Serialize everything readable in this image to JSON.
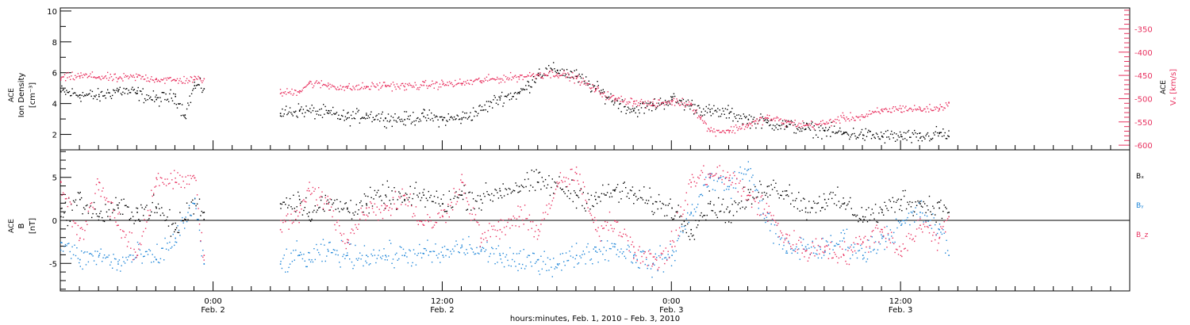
{
  "colors": {
    "black": "#000000",
    "pink": "#e8315f",
    "blue": "#1f86d8",
    "axis": "#000000"
  },
  "xaxis": {
    "title": "hours:minutes, Feb.  1, 2010 – Feb.  3, 2010",
    "ticks": [
      {
        "x": 24,
        "time": "0:00",
        "date": "Feb. 2"
      },
      {
        "x": 36,
        "time": "12:00",
        "date": "Feb. 2"
      },
      {
        "x": 48,
        "time": "0:00",
        "date": "Feb. 3"
      },
      {
        "x": 60,
        "time": "12:00",
        "date": "Feb. 3"
      }
    ]
  },
  "chart_data": [
    {
      "type": "scatter",
      "panel": "density-velocity",
      "ylabel": [
        "ACE",
        "Ion Density",
        "[cm⁻³]"
      ],
      "ylabel_right": [
        "ACE",
        "Vₓ [km/s]"
      ],
      "ylim": [
        1,
        10.2
      ],
      "yticks": [
        2,
        4,
        6,
        8,
        10
      ],
      "ylim_right": [
        -610,
        -305
      ],
      "yticks_right": [
        -350,
        -400,
        -450,
        -500,
        -550,
        -600
      ],
      "xlim": [
        16,
        72
      ],
      "x_unit": "hours since Feb. 1, 2010 0:00",
      "series": [
        {
          "key": "density",
          "color": "#000000",
          "points": [
            [
              16.0,
              4.8
            ],
            [
              17.0,
              4.6
            ],
            [
              18.0,
              4.5
            ],
            [
              19.0,
              4.9
            ],
            [
              20.0,
              4.7
            ],
            [
              21.0,
              4.3
            ],
            [
              22.0,
              4.5
            ],
            [
              22.5,
              3.3
            ],
            [
              23.0,
              5.2
            ],
            [
              23.5,
              5.0
            ],
            [
              27.5,
              3.4
            ],
            [
              28.5,
              3.6
            ],
            [
              30.0,
              3.4
            ],
            [
              31.0,
              3.1
            ],
            [
              32.0,
              3.3
            ],
            [
              33.0,
              3.1
            ],
            [
              34.0,
              3.0
            ],
            [
              35.0,
              3.2
            ],
            [
              36.0,
              3.0
            ],
            [
              37.0,
              3.1
            ],
            [
              38.0,
              3.6
            ],
            [
              39.0,
              4.4
            ],
            [
              40.0,
              4.7
            ],
            [
              40.5,
              5.2
            ],
            [
              41.0,
              6.0
            ],
            [
              42.0,
              6.2
            ],
            [
              43.0,
              5.8
            ],
            [
              44.0,
              5.0
            ],
            [
              45.0,
              4.2
            ],
            [
              46.0,
              3.6
            ],
            [
              47.0,
              3.9
            ],
            [
              48.0,
              4.3
            ],
            [
              49.0,
              3.9
            ],
            [
              50.0,
              3.5
            ],
            [
              51.0,
              3.4
            ],
            [
              52.0,
              3.0
            ],
            [
              53.0,
              2.8
            ],
            [
              54.0,
              2.6
            ],
            [
              55.0,
              2.4
            ],
            [
              56.0,
              2.3
            ],
            [
              57.0,
              2.1
            ],
            [
              58.0,
              2.0
            ],
            [
              59.0,
              1.9
            ],
            [
              60.0,
              1.9
            ],
            [
              61.0,
              1.8
            ],
            [
              62.0,
              2.1
            ],
            [
              62.5,
              1.9
            ]
          ]
        },
        {
          "key": "vx",
          "color": "#e8315f",
          "points": [
            [
              16.0,
              -455
            ],
            [
              17.0,
              -450
            ],
            [
              18.0,
              -452
            ],
            [
              19.0,
              -456
            ],
            [
              20.0,
              -452
            ],
            [
              21.0,
              -457
            ],
            [
              22.0,
              -460
            ],
            [
              23.0,
              -458
            ],
            [
              23.5,
              -456
            ],
            [
              27.5,
              -488
            ],
            [
              28.5,
              -482
            ],
            [
              29.0,
              -466
            ],
            [
              30.0,
              -470
            ],
            [
              31.0,
              -476
            ],
            [
              32.0,
              -474
            ],
            [
              33.0,
              -470
            ],
            [
              34.0,
              -473
            ],
            [
              35.0,
              -470
            ],
            [
              36.0,
              -468
            ],
            [
              37.0,
              -466
            ],
            [
              38.0,
              -460
            ],
            [
              39.0,
              -456
            ],
            [
              40.0,
              -452
            ],
            [
              41.0,
              -447
            ],
            [
              42.0,
              -445
            ],
            [
              43.0,
              -455
            ],
            [
              44.0,
              -480
            ],
            [
              45.0,
              -500
            ],
            [
              46.0,
              -505
            ],
            [
              47.0,
              -512
            ],
            [
              48.0,
              -505
            ],
            [
              49.0,
              -510
            ],
            [
              49.5,
              -540
            ],
            [
              50.0,
              -568
            ],
            [
              51.0,
              -568
            ],
            [
              52.0,
              -555
            ],
            [
              53.0,
              -540
            ],
            [
              54.0,
              -550
            ],
            [
              55.0,
              -556
            ],
            [
              56.0,
              -553
            ],
            [
              57.0,
              -540
            ],
            [
              58.0,
              -538
            ],
            [
              59.0,
              -525
            ],
            [
              60.0,
              -520
            ],
            [
              61.0,
              -522
            ],
            [
              62.0,
              -520
            ],
            [
              62.5,
              -508
            ]
          ]
        }
      ]
    },
    {
      "type": "scatter",
      "panel": "magnetic-field",
      "ylabel": [
        "ACE",
        "B",
        "[nT]"
      ],
      "ylim": [
        -8.2,
        8.2
      ],
      "yticks": [
        5,
        0,
        -5
      ],
      "zero_line": true,
      "xlim": [
        16,
        72
      ],
      "x_unit": "hours since Feb. 1, 2010 0:00",
      "legend": [
        {
          "label": "Bₓ",
          "color": "#000000"
        },
        {
          "label": "Bᵧ",
          "color": "#1f86d8"
        },
        {
          "label": "B_z",
          "color": "#e8315f"
        }
      ],
      "series": [
        {
          "key": "bx",
          "color": "#000000",
          "points": [
            [
              16.0,
              0.5
            ],
            [
              17.0,
              2.5
            ],
            [
              18.0,
              0.5
            ],
            [
              19.0,
              1.5
            ],
            [
              20.0,
              1.0
            ],
            [
              21.0,
              1.5
            ],
            [
              22.0,
              -1.0
            ],
            [
              23.0,
              2.0
            ],
            [
              23.5,
              1.0
            ],
            [
              27.5,
              2.0
            ],
            [
              28.5,
              2.5
            ],
            [
              29.0,
              1.0
            ],
            [
              30.0,
              2.0
            ],
            [
              31.0,
              1.5
            ],
            [
              32.0,
              2.0
            ],
            [
              33.0,
              3.0
            ],
            [
              34.0,
              2.5
            ],
            [
              35.0,
              3.0
            ],
            [
              36.0,
              2.0
            ],
            [
              37.0,
              3.0
            ],
            [
              38.0,
              2.5
            ],
            [
              39.0,
              3.5
            ],
            [
              40.0,
              4.0
            ],
            [
              41.0,
              4.5
            ],
            [
              42.0,
              4.0
            ],
            [
              43.0,
              3.0
            ],
            [
              44.0,
              2.5
            ],
            [
              45.0,
              3.5
            ],
            [
              46.0,
              3.0
            ],
            [
              47.0,
              2.0
            ],
            [
              48.0,
              1.5
            ],
            [
              49.0,
              -1.0
            ],
            [
              50.0,
              2.0
            ],
            [
              51.0,
              1.0
            ],
            [
              52.0,
              2.5
            ],
            [
              53.0,
              4.0
            ],
            [
              54.0,
              3.5
            ],
            [
              55.0,
              1.5
            ],
            [
              56.0,
              2.5
            ],
            [
              57.0,
              2.0
            ],
            [
              58.0,
              0.5
            ],
            [
              59.0,
              1.0
            ],
            [
              60.0,
              2.5
            ],
            [
              61.0,
              2.0
            ],
            [
              62.0,
              1.5
            ],
            [
              62.5,
              1.0
            ]
          ]
        },
        {
          "key": "by",
          "color": "#1f86d8",
          "points": [
            [
              16.0,
              -2.5
            ],
            [
              17.0,
              -4.5
            ],
            [
              18.0,
              -4.0
            ],
            [
              19.0,
              -5.0
            ],
            [
              20.0,
              -4.0
            ],
            [
              21.0,
              -4.5
            ],
            [
              22.0,
              -2.0
            ],
            [
              23.0,
              2.0
            ],
            [
              23.5,
              -5.0
            ],
            [
              27.5,
              -5.0
            ],
            [
              28.5,
              -4.0
            ],
            [
              29.0,
              -4.5
            ],
            [
              30.0,
              -3.5
            ],
            [
              31.0,
              -4.0
            ],
            [
              32.0,
              -4.0
            ],
            [
              33.0,
              -4.0
            ],
            [
              34.0,
              -4.0
            ],
            [
              35.0,
              -3.8
            ],
            [
              36.0,
              -4.0
            ],
            [
              37.0,
              -3.0
            ],
            [
              38.0,
              -3.5
            ],
            [
              39.0,
              -4.0
            ],
            [
              40.0,
              -5.0
            ],
            [
              41.0,
              -4.5
            ],
            [
              42.0,
              -5.0
            ],
            [
              43.0,
              -4.0
            ],
            [
              44.0,
              -3.5
            ],
            [
              45.0,
              -3.0
            ],
            [
              46.0,
              -4.0
            ],
            [
              47.0,
              -5.0
            ],
            [
              48.0,
              -4.0
            ],
            [
              49.0,
              1.0
            ],
            [
              50.0,
              5.0
            ],
            [
              51.0,
              4.0
            ],
            [
              52.0,
              6.0
            ],
            [
              53.0,
              0.0
            ],
            [
              54.0,
              -3.5
            ],
            [
              55.0,
              -3.0
            ],
            [
              56.0,
              -3.5
            ],
            [
              57.0,
              -2.0
            ],
            [
              58.0,
              -4.0
            ],
            [
              59.0,
              -2.0
            ],
            [
              60.0,
              -0.5
            ],
            [
              61.0,
              1.0
            ],
            [
              62.0,
              -1.0
            ],
            [
              62.5,
              -4.0
            ]
          ]
        },
        {
          "key": "bz",
          "color": "#e8315f",
          "points": [
            [
              16.0,
              4.5
            ],
            [
              17.0,
              -2.0
            ],
            [
              18.0,
              4.5
            ],
            [
              19.0,
              -0.5
            ],
            [
              20.0,
              -4.0
            ],
            [
              21.0,
              5.0
            ],
            [
              22.0,
              4.5
            ],
            [
              23.0,
              5.0
            ],
            [
              23.5,
              -4.0
            ],
            [
              27.5,
              -1.0
            ],
            [
              28.5,
              1.0
            ],
            [
              29.0,
              3.5
            ],
            [
              30.0,
              2.0
            ],
            [
              31.0,
              -2.5
            ],
            [
              32.0,
              1.5
            ],
            [
              33.0,
              1.5
            ],
            [
              34.0,
              3.0
            ],
            [
              35.0,
              -0.5
            ],
            [
              36.0,
              0.5
            ],
            [
              37.0,
              4.5
            ],
            [
              38.0,
              -2.0
            ],
            [
              39.0,
              -1.0
            ],
            [
              40.0,
              0.5
            ],
            [
              41.0,
              -1.0
            ],
            [
              42.0,
              4.0
            ],
            [
              43.0,
              5.5
            ],
            [
              44.0,
              -1.0
            ],
            [
              45.0,
              0.0
            ],
            [
              46.0,
              -3.0
            ],
            [
              47.0,
              -5.0
            ],
            [
              48.0,
              -3.0
            ],
            [
              49.0,
              4.5
            ],
            [
              50.0,
              5.5
            ],
            [
              51.0,
              5.0
            ],
            [
              52.0,
              3.0
            ],
            [
              53.0,
              1.0
            ],
            [
              54.0,
              -2.0
            ],
            [
              55.0,
              -3.5
            ],
            [
              56.0,
              -3.0
            ],
            [
              57.0,
              -4.0
            ],
            [
              58.0,
              -2.5
            ],
            [
              59.0,
              -1.0
            ],
            [
              60.0,
              -3.5
            ],
            [
              61.0,
              -0.5
            ],
            [
              62.0,
              -2.0
            ],
            [
              62.5,
              0.5
            ]
          ]
        }
      ]
    }
  ]
}
